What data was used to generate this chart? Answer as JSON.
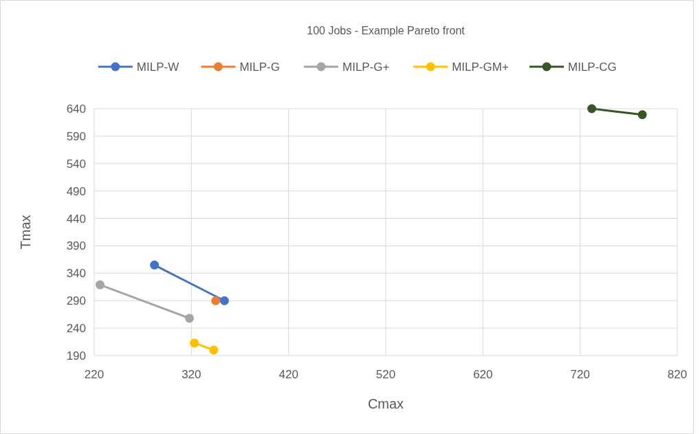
{
  "chart_data": {
    "type": "line",
    "title": "100 Jobs - Example Pareto front",
    "xlabel": "Cmax",
    "ylabel": "Tmax",
    "xlim": [
      220,
      820
    ],
    "xticks": [
      220,
      320,
      420,
      520,
      620,
      720,
      820
    ],
    "ylim": [
      190,
      640
    ],
    "yticks": [
      190,
      240,
      290,
      340,
      390,
      440,
      490,
      540,
      590,
      640
    ],
    "grid": true,
    "legend": "top",
    "marker": "circle",
    "line_style": "solid",
    "series": [
      {
        "name": "MILP-W",
        "color": "#4472c4",
        "x": [
          282,
          354
        ],
        "values": [
          355,
          290
        ]
      },
      {
        "name": "MILP-G",
        "color": "#ed7d31",
        "x": [
          345
        ],
        "values": [
          290
        ]
      },
      {
        "name": "MILP-G+",
        "color": "#a5a5a5",
        "x": [
          226,
          318
        ],
        "values": [
          319,
          258
        ]
      },
      {
        "name": "MILP-GM+",
        "color": "#ffc000",
        "x": [
          323,
          343
        ],
        "values": [
          213,
          200
        ]
      },
      {
        "name": "MILP-CG",
        "color": "#375623",
        "x": [
          732,
          784
        ],
        "values": [
          640,
          629
        ]
      }
    ]
  }
}
